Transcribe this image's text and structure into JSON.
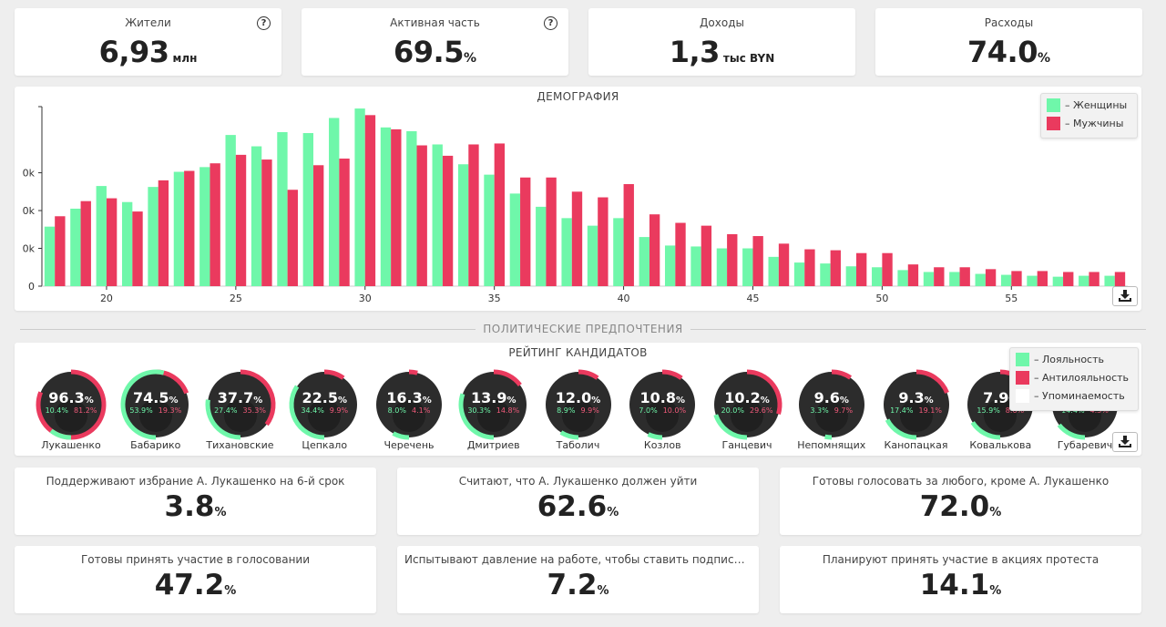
{
  "kpis": [
    {
      "label": "Жители",
      "value": "6,93",
      "unit": "млн",
      "pct": ""
    },
    {
      "label": "Активная часть",
      "value": "69.5",
      "unit": "",
      "pct": "%"
    },
    {
      "label": "Доходы",
      "value": "1,3",
      "unit": "тыс BYN",
      "pct": ""
    },
    {
      "label": "Расходы",
      "value": "74.0",
      "unit": "",
      "pct": "%"
    }
  ],
  "help_glyph": "?",
  "demography": {
    "title": "ДЕМОГРАФИЯ",
    "legend": [
      "– Женщины",
      "– Мужчины"
    ],
    "colors": {
      "women": "#6ff7aa",
      "men": "#ea3a5e"
    }
  },
  "chart_data": {
    "type": "bar",
    "title": "ДЕМОГРАФИЯ",
    "xlabel": "",
    "ylabel": "",
    "x": [
      18,
      19,
      20,
      21,
      22,
      23,
      24,
      25,
      26,
      27,
      28,
      29,
      30,
      31,
      32,
      33,
      34,
      35,
      36,
      37,
      38,
      39,
      40,
      41,
      42,
      43,
      44,
      45,
      46,
      47,
      48,
      49,
      50,
      51,
      52,
      53,
      54,
      55,
      56,
      57,
      58,
      59
    ],
    "x_ticks": [
      "20",
      "25",
      "30",
      "35",
      "40",
      "45",
      "50",
      "55"
    ],
    "y_ticks": [
      "0",
      "0k",
      "0k",
      "0k"
    ],
    "ylim": [
      0,
      190000
    ],
    "series": [
      {
        "name": "– Женщины",
        "values": [
          63000,
          82000,
          106000,
          89000,
          105000,
          121000,
          126000,
          160000,
          148000,
          163000,
          162000,
          178000,
          188000,
          168000,
          164000,
          150000,
          129000,
          118000,
          98000,
          84000,
          72000,
          64000,
          72000,
          52000,
          43000,
          42000,
          40000,
          40000,
          31000,
          25000,
          24000,
          21000,
          20000,
          17000,
          15000,
          15000,
          13000,
          12000,
          11000,
          10000,
          11000,
          11000
        ]
      },
      {
        "name": "– Мужчины",
        "values": [
          74000,
          90000,
          93000,
          79000,
          112000,
          122000,
          130000,
          139000,
          134000,
          102000,
          128000,
          135000,
          181000,
          166000,
          149000,
          138000,
          150000,
          151000,
          115000,
          115000,
          100000,
          94000,
          108000,
          76000,
          67000,
          64000,
          55000,
          53000,
          45000,
          39000,
          38000,
          35000,
          35000,
          23000,
          20000,
          20000,
          18000,
          16000,
          16000,
          15000,
          15000,
          15000
        ]
      }
    ],
    "legend_position": "top-right",
    "grid": false
  },
  "politics": {
    "section_title": "ПОЛИТИЧЕСКИЕ ПРЕДПОЧТЕНИЯ",
    "rating_title": "РЕЙТИНГ КАНДИДАТОВ",
    "legend": [
      "– Лояльность",
      "– Антилояльность",
      "– Упоминаемость"
    ],
    "colors": {
      "loyal": "#6ff7aa",
      "anti": "#ea3a5e",
      "mention": "#ffffff"
    },
    "candidates": [
      {
        "name": "Лукашенко",
        "main": "96.3",
        "loyal": "10.4%",
        "anti": "81.2%"
      },
      {
        "name": "Бабарико",
        "main": "74.5",
        "loyal": "53.9%",
        "anti": "19.3%"
      },
      {
        "name": "Тихановские",
        "main": "37.7",
        "loyal": "27.4%",
        "anti": "35.3%"
      },
      {
        "name": "Цепкало",
        "main": "22.5",
        "loyal": "34.4%",
        "anti": "9.9%"
      },
      {
        "name": "Черечень",
        "main": "16.3",
        "loyal": "8.0%",
        "anti": "4.1%"
      },
      {
        "name": "Дмитриев",
        "main": "13.9",
        "loyal": "30.3%",
        "anti": "14.8%"
      },
      {
        "name": "Таболич",
        "main": "12.0",
        "loyal": "8.9%",
        "anti": "9.9%"
      },
      {
        "name": "Козлов",
        "main": "10.8",
        "loyal": "7.0%",
        "anti": "10.0%"
      },
      {
        "name": "Ганцевич",
        "main": "10.2",
        "loyal": "20.0%",
        "anti": "29.6%"
      },
      {
        "name": "Непомнящих",
        "main": "9.6",
        "loyal": "3.3%",
        "anti": "9.7%"
      },
      {
        "name": "Канопацкая",
        "main": "9.3",
        "loyal": "17.4%",
        "anti": "19.1%"
      },
      {
        "name": "Ковалькова",
        "main": "7.9",
        "loyal": "15.9%",
        "anti": "8.6%"
      },
      {
        "name": "Губаревич",
        "main": "",
        "loyal": "14.4%",
        "anti": "4.3%"
      }
    ]
  },
  "stats": [
    {
      "label": "Поддерживают избрание А. Лукашенко на 6-й срок",
      "value": "3.8",
      "pct": "%"
    },
    {
      "label": "Считают, что А. Лукашенко должен уйти",
      "value": "62.6",
      "pct": "%"
    },
    {
      "label": "Готовы голосовать за любого, кроме А. Лукашенко",
      "value": "72.0",
      "pct": "%"
    },
    {
      "label": "Готовы принять участие в голосовании",
      "value": "47.2",
      "pct": "%"
    },
    {
      "label": "Испытывают давление на работе, чтобы ставить подписи за А. Л...",
      "value": "7.2",
      "pct": "%"
    },
    {
      "label": "Планируют принять участие в акциях протеста",
      "value": "14.1",
      "pct": "%"
    }
  ]
}
